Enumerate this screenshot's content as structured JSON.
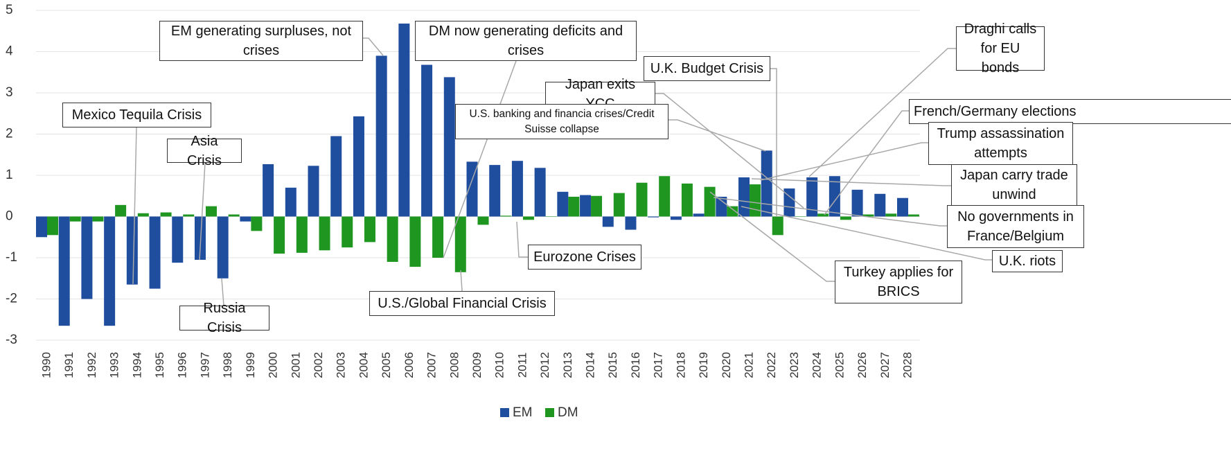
{
  "chart_data": {
    "type": "bar",
    "categories": [
      "1990",
      "1991",
      "1992",
      "1993",
      "1994",
      "1995",
      "1996",
      "1997",
      "1998",
      "1999",
      "2000",
      "2001",
      "2002",
      "2003",
      "2004",
      "2005",
      "2006",
      "2007",
      "2008",
      "2009",
      "2010",
      "2011",
      "2012",
      "2013",
      "2014",
      "2015",
      "2016",
      "2017",
      "2018",
      "2019",
      "2020",
      "2021",
      "2022",
      "2023",
      "2024",
      "2025",
      "2026",
      "2027",
      "2028"
    ],
    "series": [
      {
        "name": "EM",
        "color": "#1f4e9e",
        "values": [
          -0.5,
          -2.65,
          -2.0,
          -2.65,
          -1.65,
          -1.75,
          -1.12,
          -1.05,
          -1.5,
          -0.12,
          1.27,
          0.7,
          1.23,
          1.95,
          2.43,
          3.9,
          4.68,
          3.68,
          3.38,
          1.33,
          1.25,
          1.35,
          1.18,
          0.6,
          0.52,
          -0.25,
          -0.32,
          -0.02,
          -0.08,
          0.07,
          0.48,
          0.95,
          1.6,
          0.68,
          0.95,
          0.98,
          0.65,
          0.55,
          0.45
        ]
      },
      {
        "name": "DM",
        "color": "#1e9620",
        "values": [
          -0.45,
          -0.12,
          -0.12,
          0.28,
          0.08,
          0.1,
          0.05,
          0.25,
          0.05,
          -0.35,
          -0.9,
          -0.88,
          -0.82,
          -0.75,
          -0.62,
          -1.1,
          -1.22,
          -1.0,
          -1.35,
          -0.2,
          0.02,
          -0.08,
          0.0,
          0.48,
          0.5,
          0.57,
          0.82,
          0.98,
          0.8,
          0.72,
          0.25,
          0.78,
          -0.45,
          0.0,
          0.07,
          -0.08,
          0.05,
          0.07,
          0.05
        ]
      }
    ],
    "ylim": [
      -3,
      5
    ],
    "yticks": [
      -3,
      -2,
      -1,
      0,
      1,
      2,
      3,
      4,
      5
    ],
    "grid": true,
    "legend": "bottom",
    "annotations": [
      "EM generating surpluses, not crises",
      "DM now generating deficits and crises",
      "Mexico Tequila Crisis",
      "Asia Crisis",
      "Russia Crisis",
      "U.K. Budget Crisis",
      "Japan exits YCC",
      "U.S. banking and financia crises/Credit Suisse collapse",
      "Eurozone Crises",
      "U.S./Global Financial Crisis",
      "Draghi calls for EU bonds",
      "French/Germany elections",
      "Trump assassination attempts",
      "Japan carry trade unwind",
      "No governments in France/Belgium",
      "U.K. riots",
      "Turkey applies for BRICS"
    ]
  }
}
